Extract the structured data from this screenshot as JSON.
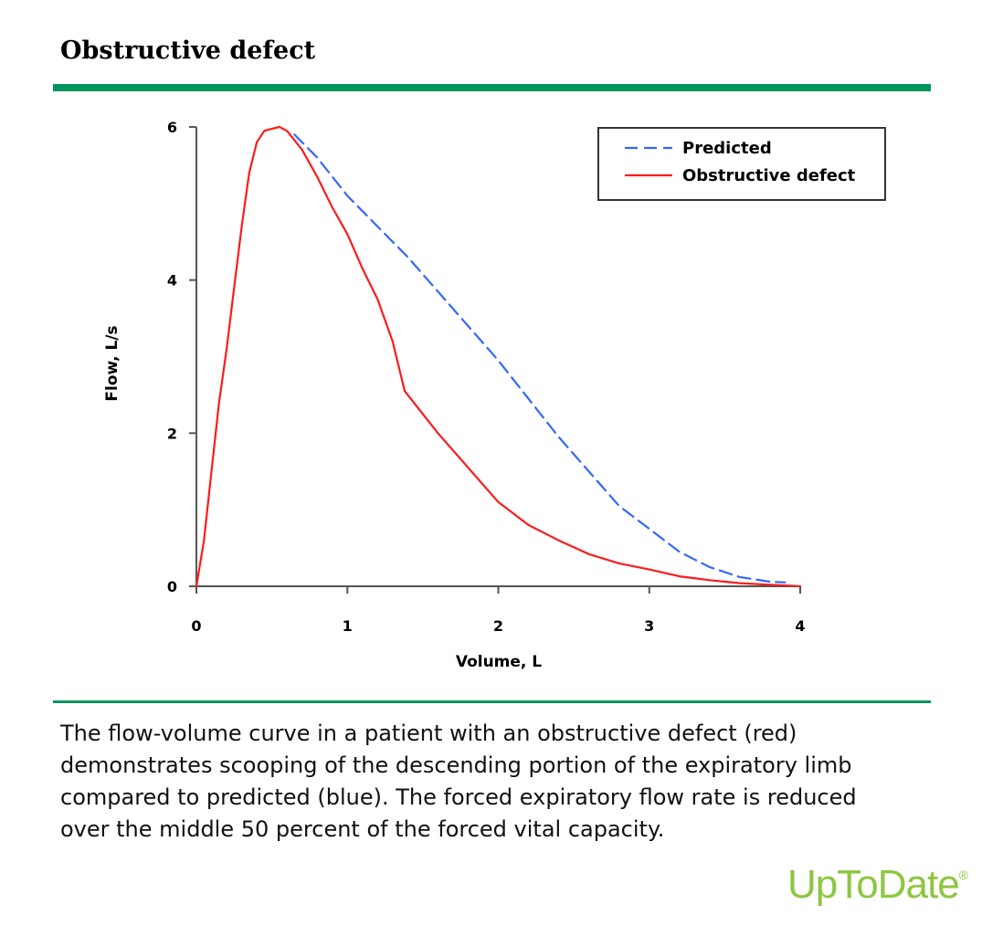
{
  "figure": {
    "title": "Obstructive defect",
    "caption": "The flow-volume curve in a patient with an obstructive defect (red) demonstrates scooping of the descending portion of the expiratory limb compared to predicted (blue). The forced expiratory flow rate is reduced over the middle 50 percent of the forced vital capacity.",
    "logo": "UpToDate",
    "logo_mark": "®"
  },
  "chart_data": {
    "type": "line",
    "xlabel": "Volume, L",
    "ylabel": "Flow, L/s",
    "xlim": [
      0,
      4
    ],
    "ylim": [
      0,
      6
    ],
    "xticks": [
      0,
      1,
      2,
      3,
      4
    ],
    "yticks": [
      0,
      2,
      4,
      6
    ],
    "grid": false,
    "legend_position": "top-right",
    "series": [
      {
        "name": "Predicted",
        "color": "#3366ff",
        "style": "dashed",
        "points": [
          [
            0.65,
            5.9
          ],
          [
            0.8,
            5.6
          ],
          [
            1.0,
            5.1
          ],
          [
            1.2,
            4.7
          ],
          [
            1.4,
            4.3
          ],
          [
            1.6,
            3.85
          ],
          [
            1.8,
            3.4
          ],
          [
            2.0,
            2.95
          ],
          [
            2.2,
            2.45
          ],
          [
            2.4,
            1.95
          ],
          [
            2.6,
            1.5
          ],
          [
            2.8,
            1.05
          ],
          [
            3.0,
            0.75
          ],
          [
            3.2,
            0.45
          ],
          [
            3.4,
            0.25
          ],
          [
            3.6,
            0.12
          ],
          [
            3.8,
            0.06
          ],
          [
            3.9,
            0.05
          ]
        ]
      },
      {
        "name": "Obstructive defect",
        "color": "#ff1a1a",
        "style": "solid",
        "points": [
          [
            0.0,
            0.0
          ],
          [
            0.05,
            0.6
          ],
          [
            0.1,
            1.5
          ],
          [
            0.15,
            2.4
          ],
          [
            0.2,
            3.1
          ],
          [
            0.25,
            3.9
          ],
          [
            0.3,
            4.7
          ],
          [
            0.35,
            5.4
          ],
          [
            0.4,
            5.8
          ],
          [
            0.45,
            5.95
          ],
          [
            0.55,
            6.0
          ],
          [
            0.6,
            5.95
          ],
          [
            0.7,
            5.7
          ],
          [
            0.8,
            5.35
          ],
          [
            0.9,
            4.95
          ],
          [
            1.0,
            4.6
          ],
          [
            1.1,
            4.15
          ],
          [
            1.2,
            3.75
          ],
          [
            1.3,
            3.2
          ],
          [
            1.38,
            2.55
          ],
          [
            1.5,
            2.25
          ],
          [
            1.6,
            2.0
          ],
          [
            1.8,
            1.55
          ],
          [
            2.0,
            1.1
          ],
          [
            2.2,
            0.8
          ],
          [
            2.4,
            0.6
          ],
          [
            2.6,
            0.42
          ],
          [
            2.8,
            0.3
          ],
          [
            3.0,
            0.22
          ],
          [
            3.2,
            0.13
          ],
          [
            3.4,
            0.08
          ],
          [
            3.6,
            0.04
          ],
          [
            3.8,
            0.02
          ],
          [
            4.0,
            0.0
          ]
        ]
      }
    ]
  }
}
